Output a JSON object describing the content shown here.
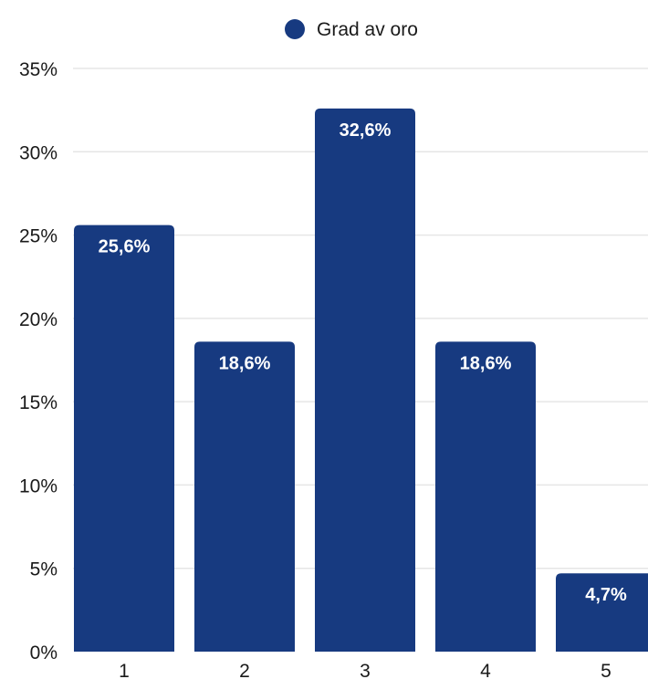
{
  "chart_data": {
    "type": "bar",
    "categories": [
      "1",
      "2",
      "3",
      "4",
      "5"
    ],
    "series": [
      {
        "name": "Grad av oro",
        "values": [
          25.6,
          18.6,
          32.6,
          18.6,
          4.7
        ]
      }
    ],
    "data_labels": [
      "25,6%",
      "18,6%",
      "32,6%",
      "18,6%",
      "4,7%"
    ],
    "y_ticks": [
      "0%",
      "5%",
      "10%",
      "15%",
      "20%",
      "25%",
      "30%",
      "35%"
    ],
    "y_tick_values": [
      0,
      5,
      10,
      15,
      20,
      25,
      30,
      35
    ],
    "ylim": [
      0,
      35
    ],
    "grid": true,
    "legend_position": "top",
    "color": "#173a80"
  }
}
